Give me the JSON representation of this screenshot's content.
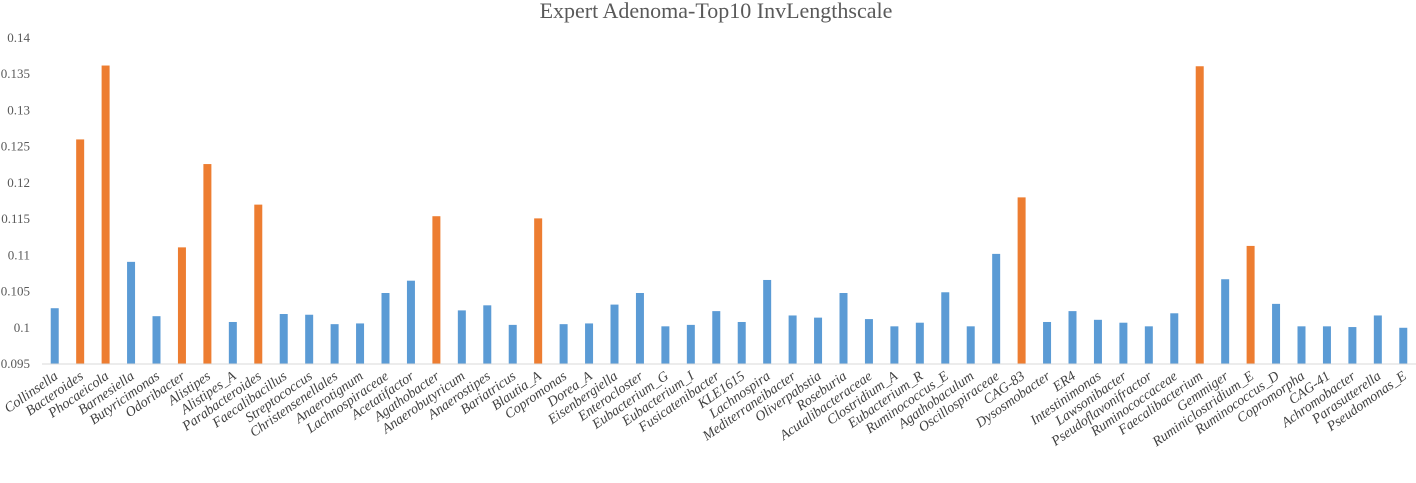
{
  "chart_data": {
    "type": "bar",
    "title": "Expert Adenoma-Top10 InvLengthscale",
    "xlabel": "",
    "ylabel": "",
    "ylim": [
      0.095,
      0.14
    ],
    "yticks": [
      "0.095",
      "0.1",
      "0.105",
      "0.11",
      "0.115",
      "0.12",
      "0.125",
      "0.13",
      "0.135",
      "0.14"
    ],
    "grid": false,
    "legend": "none",
    "colors": {
      "default": "#5b9bd5",
      "top10": "#ed7d31"
    },
    "categories": [
      "Collinsella",
      "Bacteroides",
      "Phocaeicola",
      "Barnesiella",
      "Butyricimonas",
      "Odoribacter",
      "Alistipes",
      "Alistipes_A",
      "Parabacteroides",
      "Faecalibacillus",
      "Streptococcus",
      "Christensenellales",
      "Anaerotignum",
      "Lachnospiraceae",
      "Acetatifactor",
      "Agathobacter",
      "Anaerobutyricum",
      "Anaerostipes",
      "Bariatricus",
      "Blautia_A",
      "Copromonas",
      "Dorea_A",
      "Eisenbergiella",
      "Enterocloster",
      "Eubacterium_G",
      "Eubacterium_I",
      "Fusicatenibacter",
      "KLE1615",
      "Lachnospira",
      "Mediterraneibacter",
      "Oliverpabstia",
      "Roseburia",
      "Acutalibacteraceae",
      "Clostridium_A",
      "Eubacterium_R",
      "Ruminococcus_E",
      "Agathobaculum",
      "Oscillospiraceae",
      "CAG-83",
      "Dysosmobacter",
      "ER4",
      "Intestinimonas",
      "Lawsonibacter",
      "Pseudoflavonifractor",
      "Ruminococcaceae",
      "Faecalibacterium",
      "Gemmiger",
      "Ruminiclostridium_E",
      "Ruminococcus_D",
      "Copromorpha",
      "CAG-41",
      "Achromobacter",
      "Parasutterella",
      "Pseudomonas_E"
    ],
    "values": [
      0.1027,
      0.126,
      0.1362,
      0.1091,
      0.1016,
      0.1111,
      0.1226,
      0.1008,
      0.117,
      0.1019,
      0.1018,
      0.1005,
      0.1006,
      0.1048,
      0.1065,
      0.1154,
      0.1024,
      0.1031,
      0.1004,
      0.1151,
      0.1005,
      0.1006,
      0.1032,
      0.1048,
      0.1002,
      0.1004,
      0.1023,
      0.1008,
      0.1066,
      0.1017,
      0.1014,
      0.1048,
      0.1012,
      0.1002,
      0.1007,
      0.1049,
      0.1002,
      0.1102,
      0.118,
      0.1008,
      0.1023,
      0.1011,
      0.1007,
      0.1002,
      0.102,
      0.1361,
      0.1067,
      0.1113,
      0.1033,
      0.1002,
      0.1002,
      0.1001,
      0.1017,
      0.1
    ],
    "highlight": [
      false,
      true,
      true,
      false,
      false,
      true,
      true,
      false,
      true,
      false,
      false,
      false,
      false,
      false,
      false,
      true,
      false,
      false,
      false,
      true,
      false,
      false,
      false,
      false,
      false,
      false,
      false,
      false,
      false,
      false,
      false,
      false,
      false,
      false,
      false,
      false,
      false,
      false,
      true,
      false,
      false,
      false,
      false,
      false,
      false,
      true,
      false,
      true,
      false,
      false,
      false,
      false,
      false,
      false
    ]
  }
}
